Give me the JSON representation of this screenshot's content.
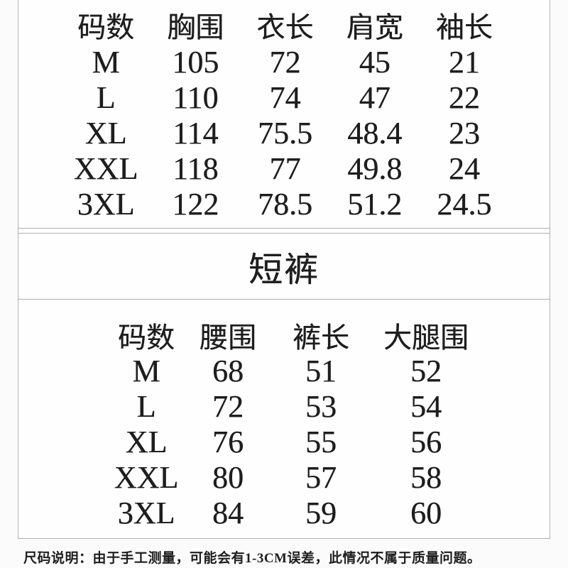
{
  "section_title": "短裤",
  "top_table": {
    "headers": [
      "码数",
      "胸围",
      "衣长",
      "肩宽",
      "袖长"
    ],
    "rows": [
      [
        "M",
        "105",
        "72",
        "45",
        "21"
      ],
      [
        "L",
        "110",
        "74",
        "47",
        "22"
      ],
      [
        "XL",
        "114",
        "75.5",
        "48.4",
        "23"
      ],
      [
        "XXL",
        "118",
        "77",
        "49.8",
        "24"
      ],
      [
        "3XL",
        "122",
        "78.5",
        "51.2",
        "24.5"
      ]
    ]
  },
  "bottom_table": {
    "headers": [
      "码数",
      "腰围",
      "裤长",
      "大腿围"
    ],
    "rows": [
      [
        "M",
        "68",
        "51",
        "52"
      ],
      [
        "L",
        "72",
        "53",
        "54"
      ],
      [
        "XL",
        "76",
        "55",
        "56"
      ],
      [
        "XXL",
        "80",
        "57",
        "58"
      ],
      [
        "3XL",
        "84",
        "59",
        "60"
      ]
    ]
  },
  "footnote": "尺码说明：由于手工测量，可能会有1-3CM误差，此情况不属于质量问题。",
  "colors": {
    "background": "#fbfbfb",
    "text": "#1e1e1e",
    "border": "#b0b0b0"
  }
}
